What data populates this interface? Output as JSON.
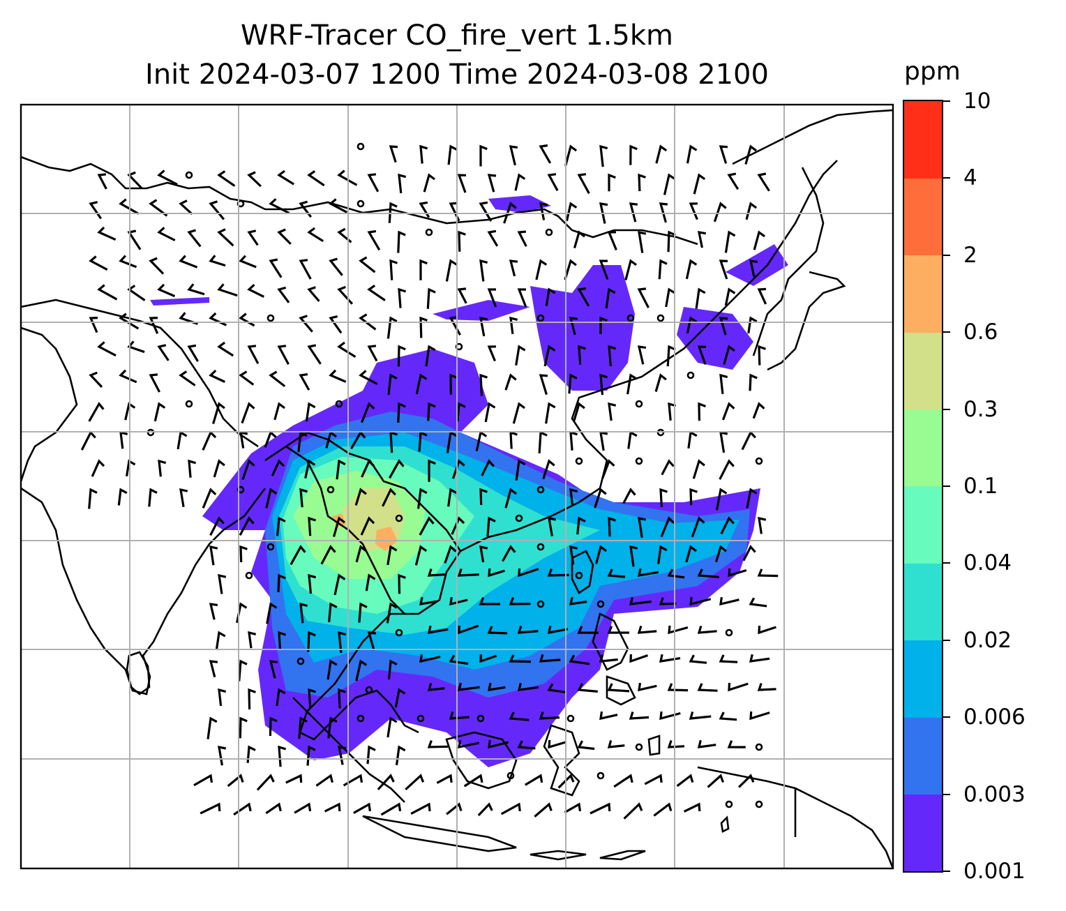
{
  "chart_data": {
    "type": "heatmap",
    "title_line1": "WRF-Tracer CO_fire_vert 1.5km",
    "title_line2": "Init 2024-03-07 1200 Time 2024-03-08 2100",
    "colorbar": {
      "unit": "ppm",
      "levels": [
        "0.001",
        "0.003",
        "0.006",
        "0.02",
        "0.04",
        "0.1",
        "0.3",
        "0.6",
        "2",
        "4",
        "10"
      ],
      "colors": [
        "#6429fa",
        "#3273f0",
        "#00b1ea",
        "#2fe0d1",
        "#67fbbe",
        "#98fc93",
        "#d1e089",
        "#fdae60",
        "#fe6d3a",
        "#ff2f18"
      ]
    },
    "grid": true,
    "overlay": "wind barbs and coastlines"
  }
}
